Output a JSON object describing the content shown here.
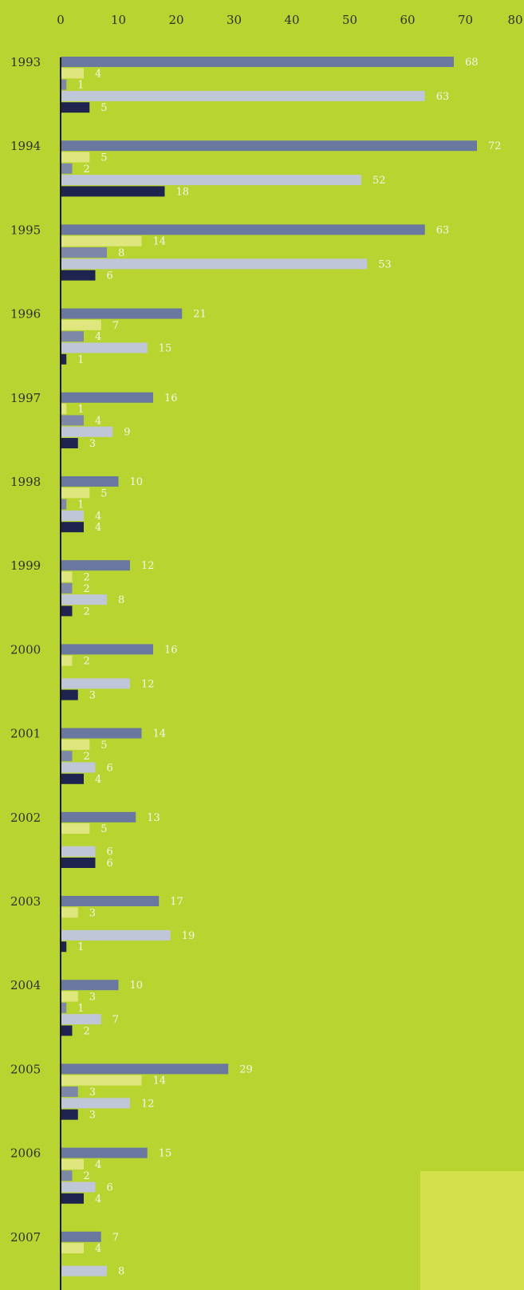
{
  "chart_data": {
    "type": "bar",
    "orientation": "horizontal",
    "xlim": [
      0,
      80
    ],
    "xticks": [
      "0",
      "10",
      "20",
      "30",
      "40",
      "50",
      "60",
      "70",
      "80"
    ],
    "categories": [
      "1993",
      "1994",
      "1995",
      "1996",
      "1997",
      "1998",
      "1999",
      "2000",
      "2001",
      "2002",
      "2003",
      "2004",
      "2005",
      "2006",
      "2007"
    ],
    "series": [
      {
        "color": "#6a78a0",
        "values": [
          68,
          72,
          63,
          21,
          16,
          10,
          12,
          16,
          14,
          13,
          17,
          10,
          29,
          15,
          7
        ]
      },
      {
        "color": "#dfe67e",
        "values": [
          4,
          5,
          14,
          7,
          1,
          5,
          2,
          2,
          5,
          5,
          3,
          3,
          14,
          4,
          4
        ]
      },
      {
        "color": "#7d87a7",
        "values": [
          1,
          2,
          8,
          4,
          4,
          1,
          2,
          null,
          2,
          null,
          null,
          1,
          3,
          2,
          null
        ]
      },
      {
        "color": "#bec6d8",
        "values": [
          63,
          52,
          53,
          15,
          9,
          4,
          8,
          12,
          6,
          6,
          19,
          7,
          12,
          6,
          8
        ]
      },
      {
        "color": "#1e2350",
        "values": [
          5,
          18,
          6,
          1,
          3,
          4,
          2,
          3,
          4,
          6,
          1,
          2,
          3,
          4,
          null
        ]
      }
    ],
    "title": "",
    "xlabel": "",
    "ylabel": "",
    "grid": false,
    "legend": "none"
  },
  "colors": {
    "background": "#b8d430",
    "corner_panel": "#d4e04c",
    "axis_line": "#1a1a1a",
    "text": "#2c3030",
    "value_label": "#f4f6e8"
  }
}
